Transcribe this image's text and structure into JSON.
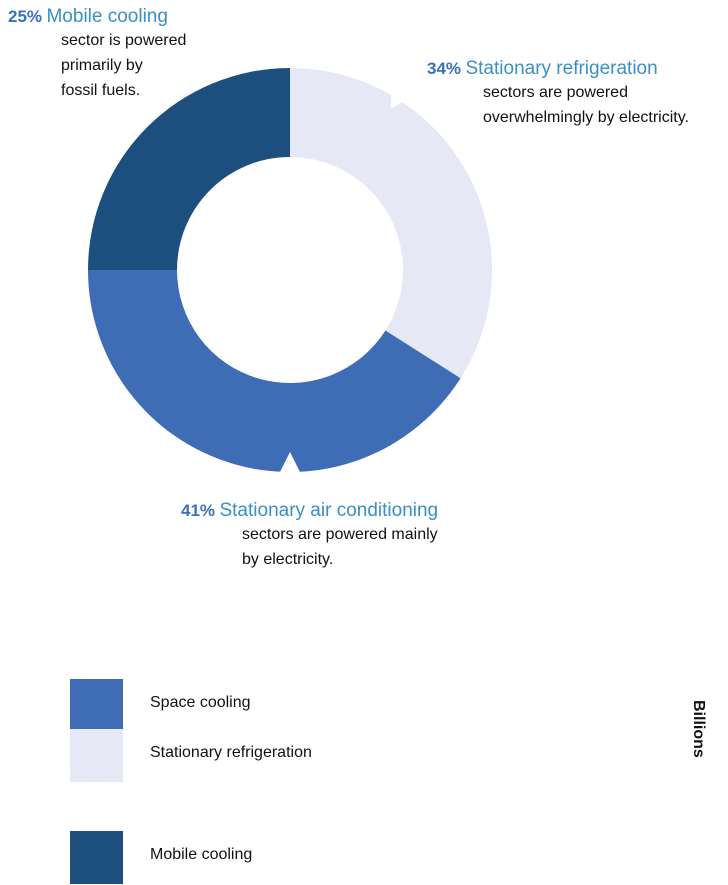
{
  "chart_data": {
    "type": "pie",
    "variant": "donut",
    "slices": [
      {
        "pct_label": "34%",
        "value": 34,
        "name": "Stationary refrigeration",
        "description_lines": [
          "sectors are powered",
          "overwhelmingly by electricity."
        ],
        "color": "#e6e8f5"
      },
      {
        "pct_label": "41%",
        "value": 41,
        "name": "Stationary air conditioning",
        "description_lines": [
          "sectors are powered mainly",
          "by electricity."
        ],
        "color": "#3e6db5"
      },
      {
        "pct_label": "25%",
        "value": 25,
        "name": "Mobile cooling",
        "description_lines": [
          "sector is powered",
          "primarily by",
          "fossil fuels."
        ],
        "color": "#1d4f7e"
      }
    ],
    "legend": [
      {
        "label": "Space cooling",
        "color": "#3e6db5"
      },
      {
        "label": "Stationary refrigeration",
        "color": "#e6e8f5"
      },
      {
        "label": "Mobile cooling",
        "color": "#1d4f7e"
      }
    ],
    "axis_fragment": "Billions"
  }
}
